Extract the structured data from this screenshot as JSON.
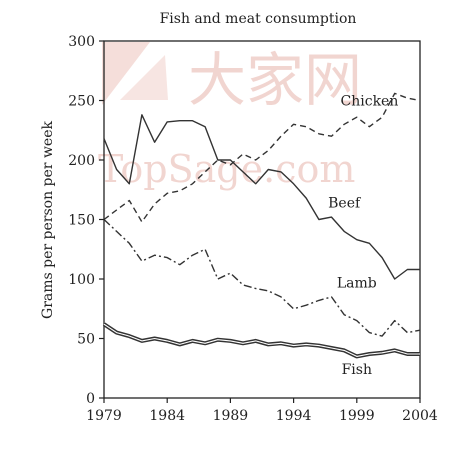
{
  "watermark": {
    "text_cn": "大家网",
    "text_en": "TopSage.com",
    "color": "#e7b3ab"
  },
  "chart_data": {
    "type": "line",
    "title": "Fish and meat consumption",
    "xlabel": "",
    "ylabel": "Grams per person per week",
    "xlim": [
      1979,
      2004
    ],
    "ylim": [
      0,
      300
    ],
    "xticks": [
      1979,
      1984,
      1989,
      1994,
      1999,
      2004
    ],
    "yticks": [
      0,
      50,
      100,
      150,
      200,
      250,
      300
    ],
    "x": [
      1979,
      1980,
      1981,
      1982,
      1983,
      1984,
      1985,
      1986,
      1987,
      1988,
      1989,
      1990,
      1991,
      1992,
      1993,
      1994,
      1995,
      1996,
      1997,
      1998,
      1999,
      2000,
      2001,
      2002,
      2003,
      2004
    ],
    "series": [
      {
        "name": "Chicken",
        "style": "dashed",
        "values": [
          150,
          158,
          166,
          148,
          163,
          172,
          174,
          180,
          190,
          200,
          196,
          205,
          200,
          208,
          220,
          230,
          228,
          222,
          220,
          230,
          236,
          228,
          236,
          256,
          252,
          250
        ]
      },
      {
        "name": "Beef",
        "style": "solid",
        "values": [
          218,
          192,
          180,
          238,
          215,
          232,
          233,
          233,
          228,
          200,
          200,
          190,
          180,
          192,
          190,
          180,
          168,
          150,
          152,
          140,
          133,
          130,
          118,
          100,
          108,
          108
        ]
      },
      {
        "name": "Lamb",
        "style": "dashdot",
        "values": [
          150,
          140,
          130,
          115,
          120,
          118,
          112,
          120,
          125,
          100,
          105,
          95,
          92,
          90,
          85,
          75,
          78,
          82,
          85,
          70,
          65,
          55,
          52,
          65,
          55,
          57
        ]
      },
      {
        "name": "Fish",
        "style": "double",
        "values": [
          62,
          55,
          52,
          48,
          50,
          48,
          45,
          48,
          46,
          49,
          48,
          46,
          48,
          45,
          46,
          44,
          45,
          44,
          42,
          40,
          35,
          37,
          38,
          40,
          37,
          37
        ]
      }
    ]
  }
}
